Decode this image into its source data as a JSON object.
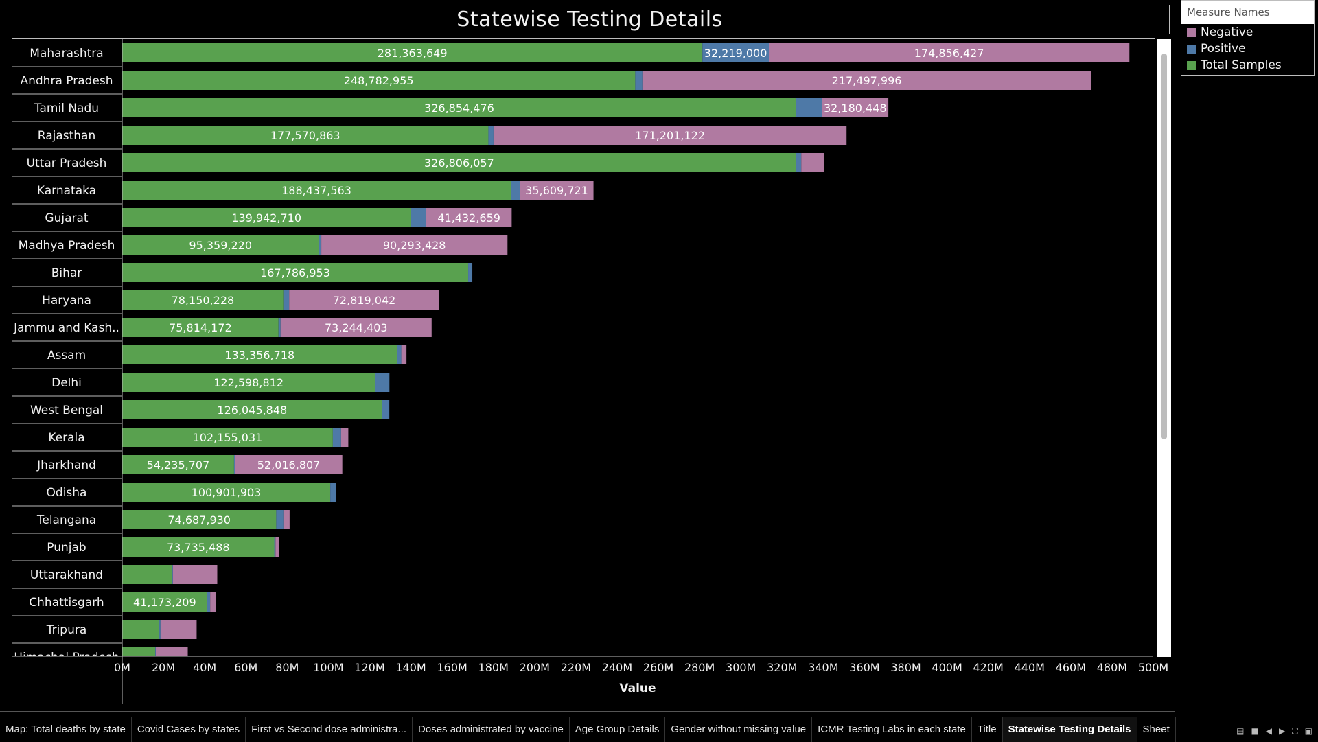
{
  "dashboard": {
    "title": "Statewise Testing Details"
  },
  "legend": {
    "title": "Measure Names",
    "items": [
      {
        "label": "Negative",
        "color": "#b07aa1"
      },
      {
        "label": "Positive",
        "color": "#4e79a7"
      },
      {
        "label": "Total Samples",
        "color": "#59a14f"
      }
    ]
  },
  "tabs": [
    "Map: Total deaths by state",
    "Covid Cases by states",
    "First vs Second dose administra...",
    "Doses administrated by vaccine",
    "Age Group Details",
    "Gender without missing value",
    "ICMR Testing Labs in each state",
    "Title",
    "Statewise Testing Details",
    "Sheet"
  ],
  "active_tab": "Statewise Testing Details",
  "chart_data": {
    "type": "bar",
    "orientation": "horizontal",
    "stacked": true,
    "xlabel": "Value",
    "xlim": [
      0,
      500000000
    ],
    "x_ticks": [
      "0M",
      "20M",
      "40M",
      "60M",
      "80M",
      "100M",
      "120M",
      "140M",
      "160M",
      "180M",
      "200M",
      "220M",
      "240M",
      "260M",
      "280M",
      "300M",
      "320M",
      "340M",
      "360M",
      "380M",
      "400M",
      "420M",
      "440M",
      "460M",
      "480M",
      "500M"
    ],
    "colors": {
      "Total Samples": "#59a14f",
      "Positive": "#4e79a7",
      "Negative": "#b07aa1"
    },
    "categories": [
      "Maharashtra",
      "Andhra Pradesh",
      "Tamil Nadu",
      "Rajasthan",
      "Uttar Pradesh",
      "Karnataka",
      "Gujarat",
      "Madhya Pradesh",
      "Bihar",
      "Haryana",
      "Jammu and Kash..",
      "Assam",
      "Delhi",
      "West Bengal",
      "Kerala",
      "Jharkhand",
      "Odisha",
      "Telangana",
      "Punjab",
      "Uttarakhand",
      "Chhattisgarh",
      "Tripura",
      "Himachal Pradesh"
    ],
    "series": [
      {
        "name": "Total Samples",
        "values": [
          281363649,
          248782955,
          326854476,
          177570863,
          326806057,
          188437563,
          139942710,
          95359220,
          167786953,
          78150228,
          75814172,
          133356718,
          122598812,
          126045848,
          102155031,
          54235707,
          100901903,
          74687930,
          73735488,
          24000000,
          41173209,
          18000000,
          16000000
        ]
      },
      {
        "name": "Positive",
        "values": [
          32219000,
          3500000,
          12500000,
          2500000,
          2500000,
          4500000,
          7500000,
          1200000,
          2000000,
          2800000,
          1000000,
          2000000,
          7000000,
          3500000,
          4000000,
          500000,
          2800000,
          3500000,
          600000,
          600000,
          1500000,
          600000,
          300000
        ]
      },
      {
        "name": "Negative",
        "values": [
          174856427,
          217497996,
          32180448,
          171201122,
          11000000,
          35609721,
          41432659,
          90293428,
          0,
          72819042,
          73244403,
          2500000,
          0,
          0,
          3500000,
          52016807,
          0,
          3000000,
          1800000,
          21500000,
          2800000,
          17500000,
          15500000
        ]
      }
    ],
    "data_labels": {
      "Total Samples": [
        "281,363,649",
        "248,782,955",
        "326,854,476",
        "177,570,863",
        "326,806,057",
        "188,437,563",
        "139,942,710",
        "95,359,220",
        "167,786,953",
        "78,150,228",
        "75,814,172",
        "133,356,718",
        "122,598,812",
        "126,045,848",
        "102,155,031",
        "54,235,707",
        "100,901,903",
        "74,687,930",
        "73,735,488",
        "",
        "41,173,209",
        "",
        ""
      ],
      "Positive": [
        "32,219,000",
        "",
        "",
        "",
        "",
        "",
        "",
        "",
        "",
        "",
        "",
        "",
        "",
        "",
        "",
        "",
        "",
        "",
        "",
        "",
        "",
        "",
        ""
      ],
      "Negative": [
        "174,856,427",
        "217,497,996",
        "32,180,448",
        "171,201,122",
        "",
        "35,609,721",
        "41,432,659",
        "90,293,428",
        "",
        "72,819,042",
        "73,244,403",
        "",
        "",
        "",
        "",
        "52,016,807",
        "",
        "",
        "",
        "",
        "",
        "",
        ""
      ]
    }
  }
}
